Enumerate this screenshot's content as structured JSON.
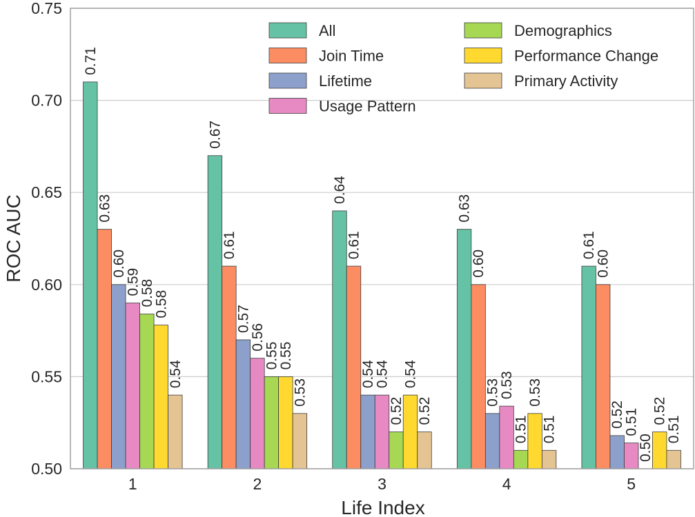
{
  "chart_data": {
    "type": "bar",
    "xlabel": "Life Index",
    "ylabel": "ROC AUC",
    "categories": [
      "1",
      "2",
      "3",
      "4",
      "5"
    ],
    "ylim": [
      0.5,
      0.75
    ],
    "yticks": [
      "0.50",
      "0.55",
      "0.60",
      "0.65",
      "0.70",
      "0.75"
    ],
    "grid": true,
    "legend_position": "top-right",
    "series": [
      {
        "name": "All",
        "color": "#66c2a5",
        "values": [
          0.71,
          0.67,
          0.64,
          0.63,
          0.61
        ],
        "labels": [
          "0.71",
          "0.67",
          "0.64",
          "0.63",
          "0.61"
        ]
      },
      {
        "name": "Join Time",
        "color": "#fc8d62",
        "values": [
          0.63,
          0.61,
          0.61,
          0.6,
          0.6
        ],
        "labels": [
          "0.63",
          "0.61",
          "0.61",
          "0.60",
          "0.60"
        ]
      },
      {
        "name": "Lifetime",
        "color": "#8da0cb",
        "values": [
          0.6,
          0.57,
          0.54,
          0.53,
          0.518
        ],
        "labels": [
          "0.60",
          "0.57",
          "0.54",
          "0.53",
          "0.52"
        ]
      },
      {
        "name": "Usage Pattern",
        "color": "#e78ac3",
        "values": [
          0.59,
          0.56,
          0.54,
          0.534,
          0.514
        ],
        "labels": [
          "0.59",
          "0.56",
          "0.54",
          "0.53",
          "0.51"
        ]
      },
      {
        "name": "Demographics",
        "color": "#a6d854",
        "values": [
          0.584,
          0.55,
          0.52,
          0.51,
          0.5
        ],
        "labels": [
          "0.58",
          "0.55",
          "0.52",
          "0.51",
          "0.50"
        ]
      },
      {
        "name": "Performance Change",
        "color": "#ffd92f",
        "values": [
          0.578,
          0.55,
          0.54,
          0.53,
          0.52
        ],
        "labels": [
          "0.58",
          "0.55",
          "0.54",
          "0.53",
          "0.52"
        ]
      },
      {
        "name": "Primary Activity",
        "color": "#e5c494",
        "values": [
          0.54,
          0.53,
          0.52,
          0.51,
          0.51
        ],
        "labels": [
          "0.54",
          "0.53",
          "0.52",
          "0.51",
          "0.51"
        ]
      }
    ]
  }
}
